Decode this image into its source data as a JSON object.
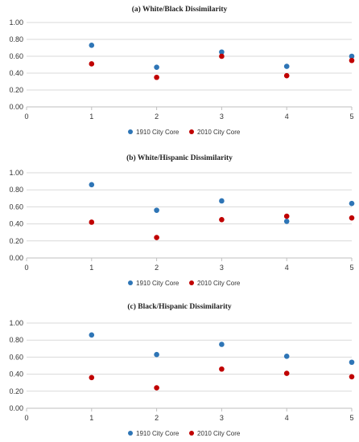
{
  "chart_data": [
    {
      "type": "scatter",
      "title": "(a) White/Black Dissimilarity",
      "xlim": [
        0,
        5
      ],
      "ylim": [
        0,
        1
      ],
      "x_ticks": [
        "0",
        "1",
        "2",
        "3",
        "4",
        "5"
      ],
      "y_ticks": [
        "0.00",
        "0.20",
        "0.40",
        "0.60",
        "0.80",
        "1.00"
      ],
      "grid": "horizontal",
      "legend_position": "bottom",
      "series": [
        {
          "name": "1910 City Core",
          "color": "#2e75b6",
          "x": [
            1,
            2,
            3,
            4,
            5
          ],
          "y": [
            0.73,
            0.47,
            0.65,
            0.48,
            0.6
          ]
        },
        {
          "name": "2010 City Core",
          "color": "#c00000",
          "x": [
            1,
            2,
            3,
            4,
            5
          ],
          "y": [
            0.51,
            0.35,
            0.6,
            0.37,
            0.55
          ]
        }
      ]
    },
    {
      "type": "scatter",
      "title": "(b) White/Hispanic Dissimilarity",
      "xlim": [
        0,
        5
      ],
      "ylim": [
        0,
        1
      ],
      "x_ticks": [
        "0",
        "1",
        "2",
        "3",
        "4",
        "5"
      ],
      "y_ticks": [
        "0.00",
        "0.20",
        "0.40",
        "0.60",
        "0.80",
        "1.00"
      ],
      "grid": "horizontal",
      "legend_position": "bottom",
      "series": [
        {
          "name": "1910 City Core",
          "color": "#2e75b6",
          "x": [
            1,
            2,
            3,
            4,
            5
          ],
          "y": [
            0.86,
            0.56,
            0.67,
            0.43,
            0.64
          ]
        },
        {
          "name": "2010 City Core",
          "color": "#c00000",
          "x": [
            1,
            2,
            3,
            4,
            5
          ],
          "y": [
            0.42,
            0.24,
            0.45,
            0.49,
            0.47
          ]
        }
      ]
    },
    {
      "type": "scatter",
      "title": "(c) Black/Hispanic Dissimilarity",
      "xlim": [
        0,
        5
      ],
      "ylim": [
        0,
        1
      ],
      "x_ticks": [
        "0",
        "1",
        "2",
        "3",
        "4",
        "5"
      ],
      "y_ticks": [
        "0.00",
        "0.20",
        "0.40",
        "0.60",
        "0.80",
        "1.00"
      ],
      "grid": "horizontal",
      "legend_position": "bottom",
      "series": [
        {
          "name": "1910 City Core",
          "color": "#2e75b6",
          "x": [
            1,
            2,
            3,
            4,
            5
          ],
          "y": [
            0.86,
            0.63,
            0.75,
            0.61,
            0.54
          ]
        },
        {
          "name": "2010 City Core",
          "color": "#c00000",
          "x": [
            1,
            2,
            3,
            4,
            5
          ],
          "y": [
            0.36,
            0.24,
            0.46,
            0.41,
            0.37
          ]
        }
      ]
    }
  ]
}
